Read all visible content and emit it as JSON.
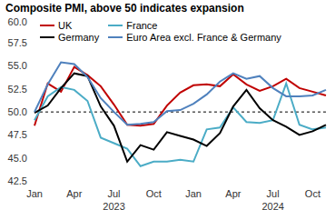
{
  "chart_data": {
    "type": "line",
    "title": "Composite PMI, above 50 indicates expansion",
    "categories": [
      "Jan",
      null,
      null,
      "Apr",
      null,
      null,
      "Jul",
      null,
      null,
      "Oct",
      null,
      null,
      "Jan",
      null,
      null,
      "Apr",
      null,
      null,
      "Jul",
      null,
      null,
      "Oct",
      null
    ],
    "year_labels": [
      null,
      null,
      null,
      null,
      null,
      null,
      "2023",
      null,
      null,
      null,
      null,
      null,
      null,
      null,
      null,
      null,
      null,
      null,
      "2024",
      null,
      null,
      null,
      null
    ],
    "series": [
      {
        "name": "UK",
        "color": "#c00000",
        "values": [
          48.5,
          53.1,
          52.2,
          54.9,
          54.0,
          52.8,
          50.8,
          48.6,
          48.5,
          48.7,
          50.7,
          52.1,
          52.9,
          53.0,
          52.8,
          54.1,
          53.0,
          52.3,
          52.8,
          53.6,
          52.6,
          52.2,
          51.8
        ]
      },
      {
        "name": "France",
        "color": "#4bacc6",
        "values": [
          49.1,
          51.7,
          52.7,
          52.4,
          51.2,
          47.2,
          46.6,
          46.0,
          44.1,
          44.6,
          44.6,
          44.8,
          44.6,
          48.1,
          48.3,
          50.5,
          48.9,
          48.8,
          49.1,
          53.1,
          48.6,
          48.1,
          48.3
        ]
      },
      {
        "name": "Germany",
        "color": "#000000",
        "values": [
          49.9,
          50.7,
          52.6,
          54.2,
          53.9,
          50.6,
          48.5,
          44.6,
          46.4,
          45.9,
          47.8,
          47.4,
          47.0,
          46.3,
          47.7,
          50.6,
          52.4,
          50.4,
          49.1,
          48.4,
          47.5,
          47.9,
          48.6
        ]
      },
      {
        "name": "Euro Area excl. France & Germany",
        "color": "#4f81bd",
        "values": [
          50.0,
          53.0,
          55.4,
          55.2,
          53.8,
          51.5,
          50.0,
          48.6,
          48.7,
          48.9,
          50.1,
          50.2,
          50.9,
          51.9,
          53.3,
          54.2,
          53.6,
          53.9,
          52.6,
          51.7,
          51.7,
          51.8,
          52.4
        ]
      }
    ],
    "ylim": [
      42.5,
      60
    ],
    "yticks": [
      42.5,
      {
        "value": 45,
        "label": "45.0"
      },
      47.5,
      {
        "value": 50,
        "label": "50.0"
      },
      52.5,
      {
        "value": 55,
        "label": "55.0"
      },
      57.5,
      {
        "value": 60,
        "label": "60.0"
      }
    ],
    "reference_lines": [
      50
    ],
    "legend": "top-left",
    "grid": false
  }
}
